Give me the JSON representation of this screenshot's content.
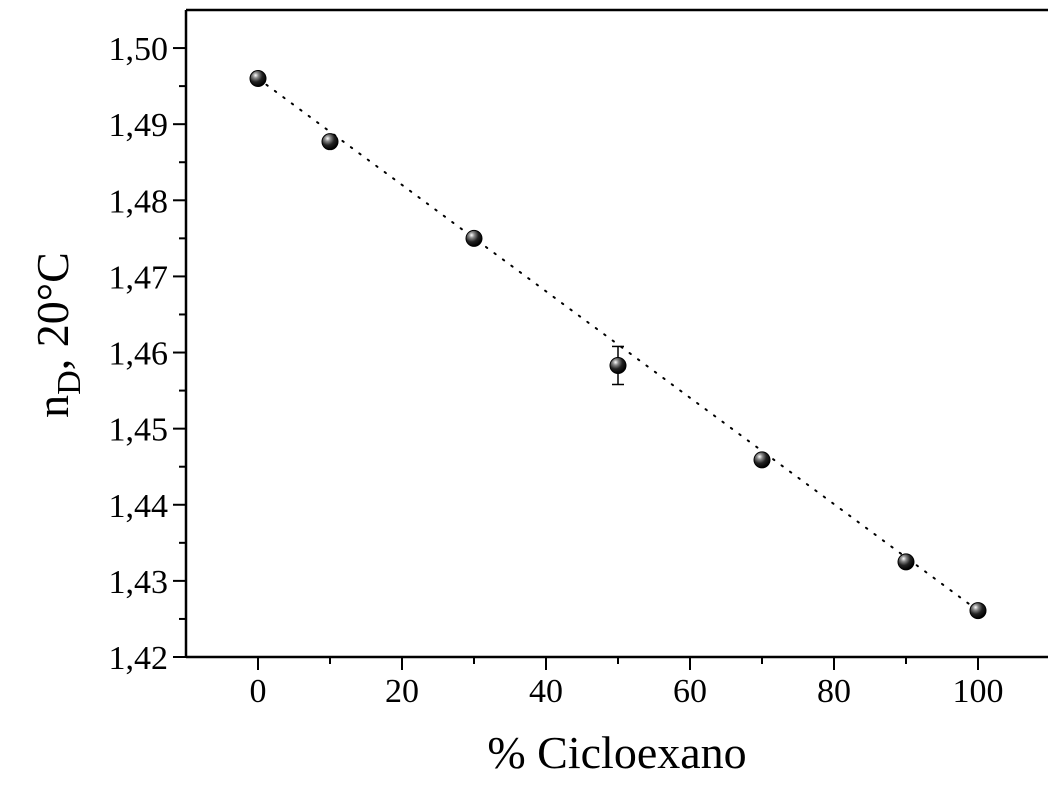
{
  "chart_data": {
    "type": "scatter",
    "title": "",
    "xlabel": "% Cicloexano",
    "ylabel": {
      "main": "n",
      "subscript": "D",
      "suffix": ", 20°C"
    },
    "xlim": [
      -10,
      110
    ],
    "ylim": [
      1.42,
      1.505
    ],
    "x_ticks": [
      0,
      20,
      40,
      60,
      80,
      100
    ],
    "x_tick_labels": [
      "0",
      "20",
      "40",
      "60",
      "80",
      "100"
    ],
    "y_ticks": [
      1.42,
      1.43,
      1.44,
      1.45,
      1.46,
      1.47,
      1.48,
      1.49,
      1.5
    ],
    "y_tick_labels": [
      "1,42",
      "1,43",
      "1,44",
      "1,45",
      "1,46",
      "1,47",
      "1,48",
      "1,49",
      "1,50"
    ],
    "grid": false,
    "series": [
      {
        "points": [
          {
            "x": 0,
            "y": 1.496,
            "err": 0
          },
          {
            "x": 10,
            "y": 1.4877,
            "err": 0
          },
          {
            "x": 30,
            "y": 1.475,
            "err": 0
          },
          {
            "x": 50,
            "y": 1.4583,
            "err": 0.0025
          },
          {
            "x": 70,
            "y": 1.4459,
            "err": 0
          },
          {
            "x": 90,
            "y": 1.4325,
            "err": 0
          },
          {
            "x": 100,
            "y": 1.4261,
            "err": 0
          }
        ]
      }
    ],
    "fit_line": {
      "style": "dotted",
      "from": {
        "x": 0,
        "y": 1.496
      },
      "to": {
        "x": 100,
        "y": 1.4261
      }
    }
  }
}
